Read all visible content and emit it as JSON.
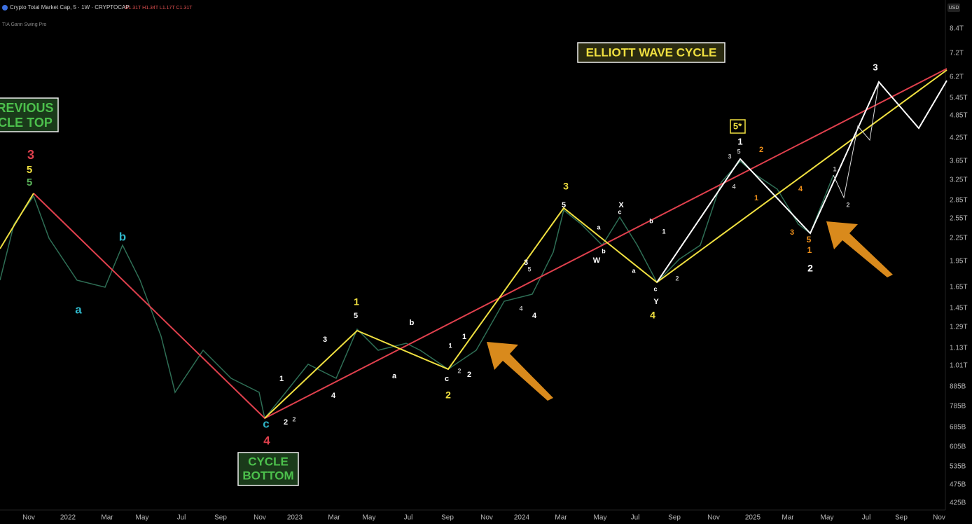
{
  "header": {
    "title": "Crypto Total Market Cap, 5 · 1W · CRYPTOCAP",
    "ohlc": "O1.31T H1.34T L1.17T C1.31T",
    "indicator": "TIA Gann Swing Pro",
    "currency": "USD"
  },
  "price_axis": [
    "8.4T",
    "7.2T",
    "6.2T",
    "5.45T",
    "4.85T",
    "4.25T",
    "3.65T",
    "3.25T",
    "2.85T",
    "2.55T",
    "2.25T",
    "1.95T",
    "1.65T",
    "1.45T",
    "1.29T",
    "1.13T",
    "1.01T",
    "885B",
    "785B",
    "685B",
    "605B",
    "535B",
    "475B",
    "425B"
  ],
  "time_axis": [
    "Nov",
    "2022",
    "Mar",
    "May",
    "Jul",
    "Sep",
    "Nov",
    "2023",
    "Mar",
    "May",
    "Jul",
    "Sep",
    "Nov",
    "2024",
    "Mar",
    "May",
    "Jul",
    "Sep",
    "Nov",
    "2025",
    "Mar",
    "May",
    "Jul",
    "Sep",
    "Nov"
  ],
  "boxes": {
    "elliott": "ELLIOTT WAVE CYCLE",
    "previous_top": [
      "REVIOUS",
      "CLE TOP"
    ],
    "cycle_bottom": [
      "CYCLE",
      "BOTTOM"
    ]
  },
  "wave_labels": [
    "3",
    "5",
    "5",
    "b",
    "a",
    "1",
    "2",
    "2",
    "c",
    "4",
    "3",
    "4",
    "1",
    "5",
    "b",
    "a",
    "c",
    "2",
    "1",
    "2",
    "1",
    "2",
    "3",
    "5",
    "4",
    "4",
    "3",
    "5",
    "a",
    "b",
    "X",
    "c",
    "W",
    "a",
    "b",
    "1",
    "c",
    "Y",
    "4",
    "2",
    "5*",
    "1",
    "3",
    "5",
    "4",
    "2",
    "1",
    "4",
    "3",
    "5",
    "1",
    "2",
    "1",
    "2",
    "3"
  ]
}
